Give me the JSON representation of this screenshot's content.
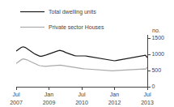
{
  "chart_data": {
    "type": "line",
    "ylabel": "no.",
    "categories": [
      "Jul\n2007",
      null,
      null,
      null,
      null,
      null,
      null,
      null,
      null,
      null,
      null,
      null,
      null,
      null,
      null,
      null,
      null,
      null,
      "Jan\n2009",
      null,
      null,
      null,
      null,
      null,
      null,
      null,
      null,
      null,
      null,
      null,
      null,
      null,
      null,
      null,
      null,
      null,
      "Jul\n2010",
      null,
      null,
      null,
      null,
      null,
      null,
      null,
      null,
      null,
      null,
      null,
      null,
      null,
      null,
      null,
      null,
      null,
      "Jan\n2012",
      null,
      null,
      null,
      null,
      null,
      null,
      null,
      null,
      null,
      null,
      null,
      null,
      null,
      null,
      null,
      null,
      null,
      "Jul\n2013"
    ],
    "series": [
      {
        "name": "Total dwelling units",
        "color": "#1a1a1a",
        "values": [
          1100,
          1130,
          1180,
          1220,
          1230,
          1210,
          1170,
          1120,
          1080,
          1060,
          1020,
          990,
          960,
          940,
          940,
          950,
          970,
          990,
          1010,
          1030,
          1050,
          1080,
          1100,
          1110,
          1120,
          1110,
          1090,
          1060,
          1040,
          1010,
          990,
          970,
          960,
          950,
          950,
          950,
          960,
          960,
          950,
          940,
          930,
          920,
          910,
          900,
          890,
          880,
          870,
          860,
          850,
          840,
          830,
          820,
          810,
          800,
          800,
          810,
          820,
          830,
          840,
          850,
          860,
          870,
          880,
          890,
          900,
          910,
          920,
          930,
          940,
          950,
          960,
          970,
          900
        ]
      },
      {
        "name": "Private sector Houses",
        "color": "#aaaaaa",
        "values": [
          720,
          760,
          810,
          840,
          860,
          850,
          830,
          800,
          770,
          740,
          710,
          690,
          670,
          650,
          640,
          635,
          630,
          635,
          640,
          650,
          655,
          660,
          665,
          668,
          665,
          660,
          650,
          640,
          630,
          620,
          610,
          600,
          590,
          580,
          570,
          562,
          558,
          555,
          550,
          545,
          540,
          535,
          530,
          525,
          520,
          515,
          510,
          505,
          500,
          495,
          492,
          490,
          490,
          492,
          495,
          498,
          500,
          505,
          510,
          515,
          520,
          525,
          530,
          535,
          538,
          540,
          542,
          544,
          545,
          546,
          545,
          540,
          600
        ]
      }
    ],
    "ylim": [
      0,
      1600
    ],
    "yticks": [
      0,
      500,
      1000,
      1500
    ],
    "grid": false,
    "legend": "upper left"
  }
}
